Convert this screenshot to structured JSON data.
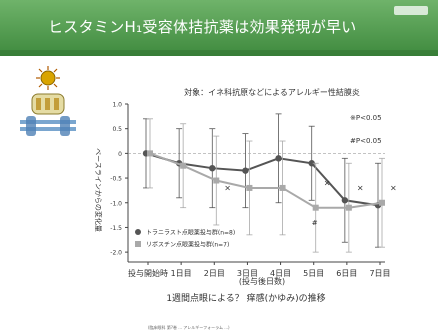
{
  "slide": {
    "title": "ヒスタミンH₁受容体拮抗薬は効果発現が早い"
  },
  "chart_data": {
    "type": "line",
    "title": "対象：イネ科抗原などによるアレルギー性結膜炎",
    "subtitle": "1週間点眼による？ 痒感(かゆみ)の推移",
    "xlabel": "(投与後日数)",
    "ylabel": "ベースラインからの変化量",
    "ylim": [
      -2.2,
      1.0
    ],
    "yticks": [
      1.0,
      0.5,
      0,
      -0.5,
      -1.0,
      -1.5,
      -2.0
    ],
    "ytick_labels": [
      "1.0",
      "0.5",
      "0",
      "-0.5",
      "-1.0",
      "-1.5",
      "-2.0"
    ],
    "categories": [
      "投与開始時",
      "1日目",
      "2日目",
      "3日目",
      "4日目",
      "5日目",
      "6日目",
      "7日目"
    ],
    "series": [
      {
        "name": "トラニラスト点眼薬投与群(n=8)",
        "color": "#555555",
        "marker": "circle",
        "values": [
          0.0,
          -0.2,
          -0.3,
          -0.35,
          -0.1,
          -0.2,
          -0.95,
          -1.05
        ],
        "err": [
          0.7,
          0.7,
          0.8,
          0.75,
          0.9,
          0.75,
          0.85,
          0.85
        ]
      },
      {
        "name": "リボスチン点眼薬投与群(n=7)",
        "color": "#a9a9a9",
        "marker": "square",
        "values": [
          0.0,
          -0.25,
          -0.55,
          -0.7,
          -0.7,
          -1.1,
          -1.1,
          -1.0
        ],
        "err": [
          0.7,
          0.85,
          0.9,
          0.95,
          0.95,
          0.9,
          0.9,
          0.9
        ]
      }
    ],
    "annotations": {
      "legend_star": "※P<0.05",
      "legend_hash": "#P<0.05",
      "star_mark": "×",
      "hash_mark": "#"
    },
    "grid": false,
    "legend_position": "bottom-left"
  },
  "footnote": {
    "citation": "(臨床眼科 第?巻 ... アレルギーフォーラム ...)"
  }
}
